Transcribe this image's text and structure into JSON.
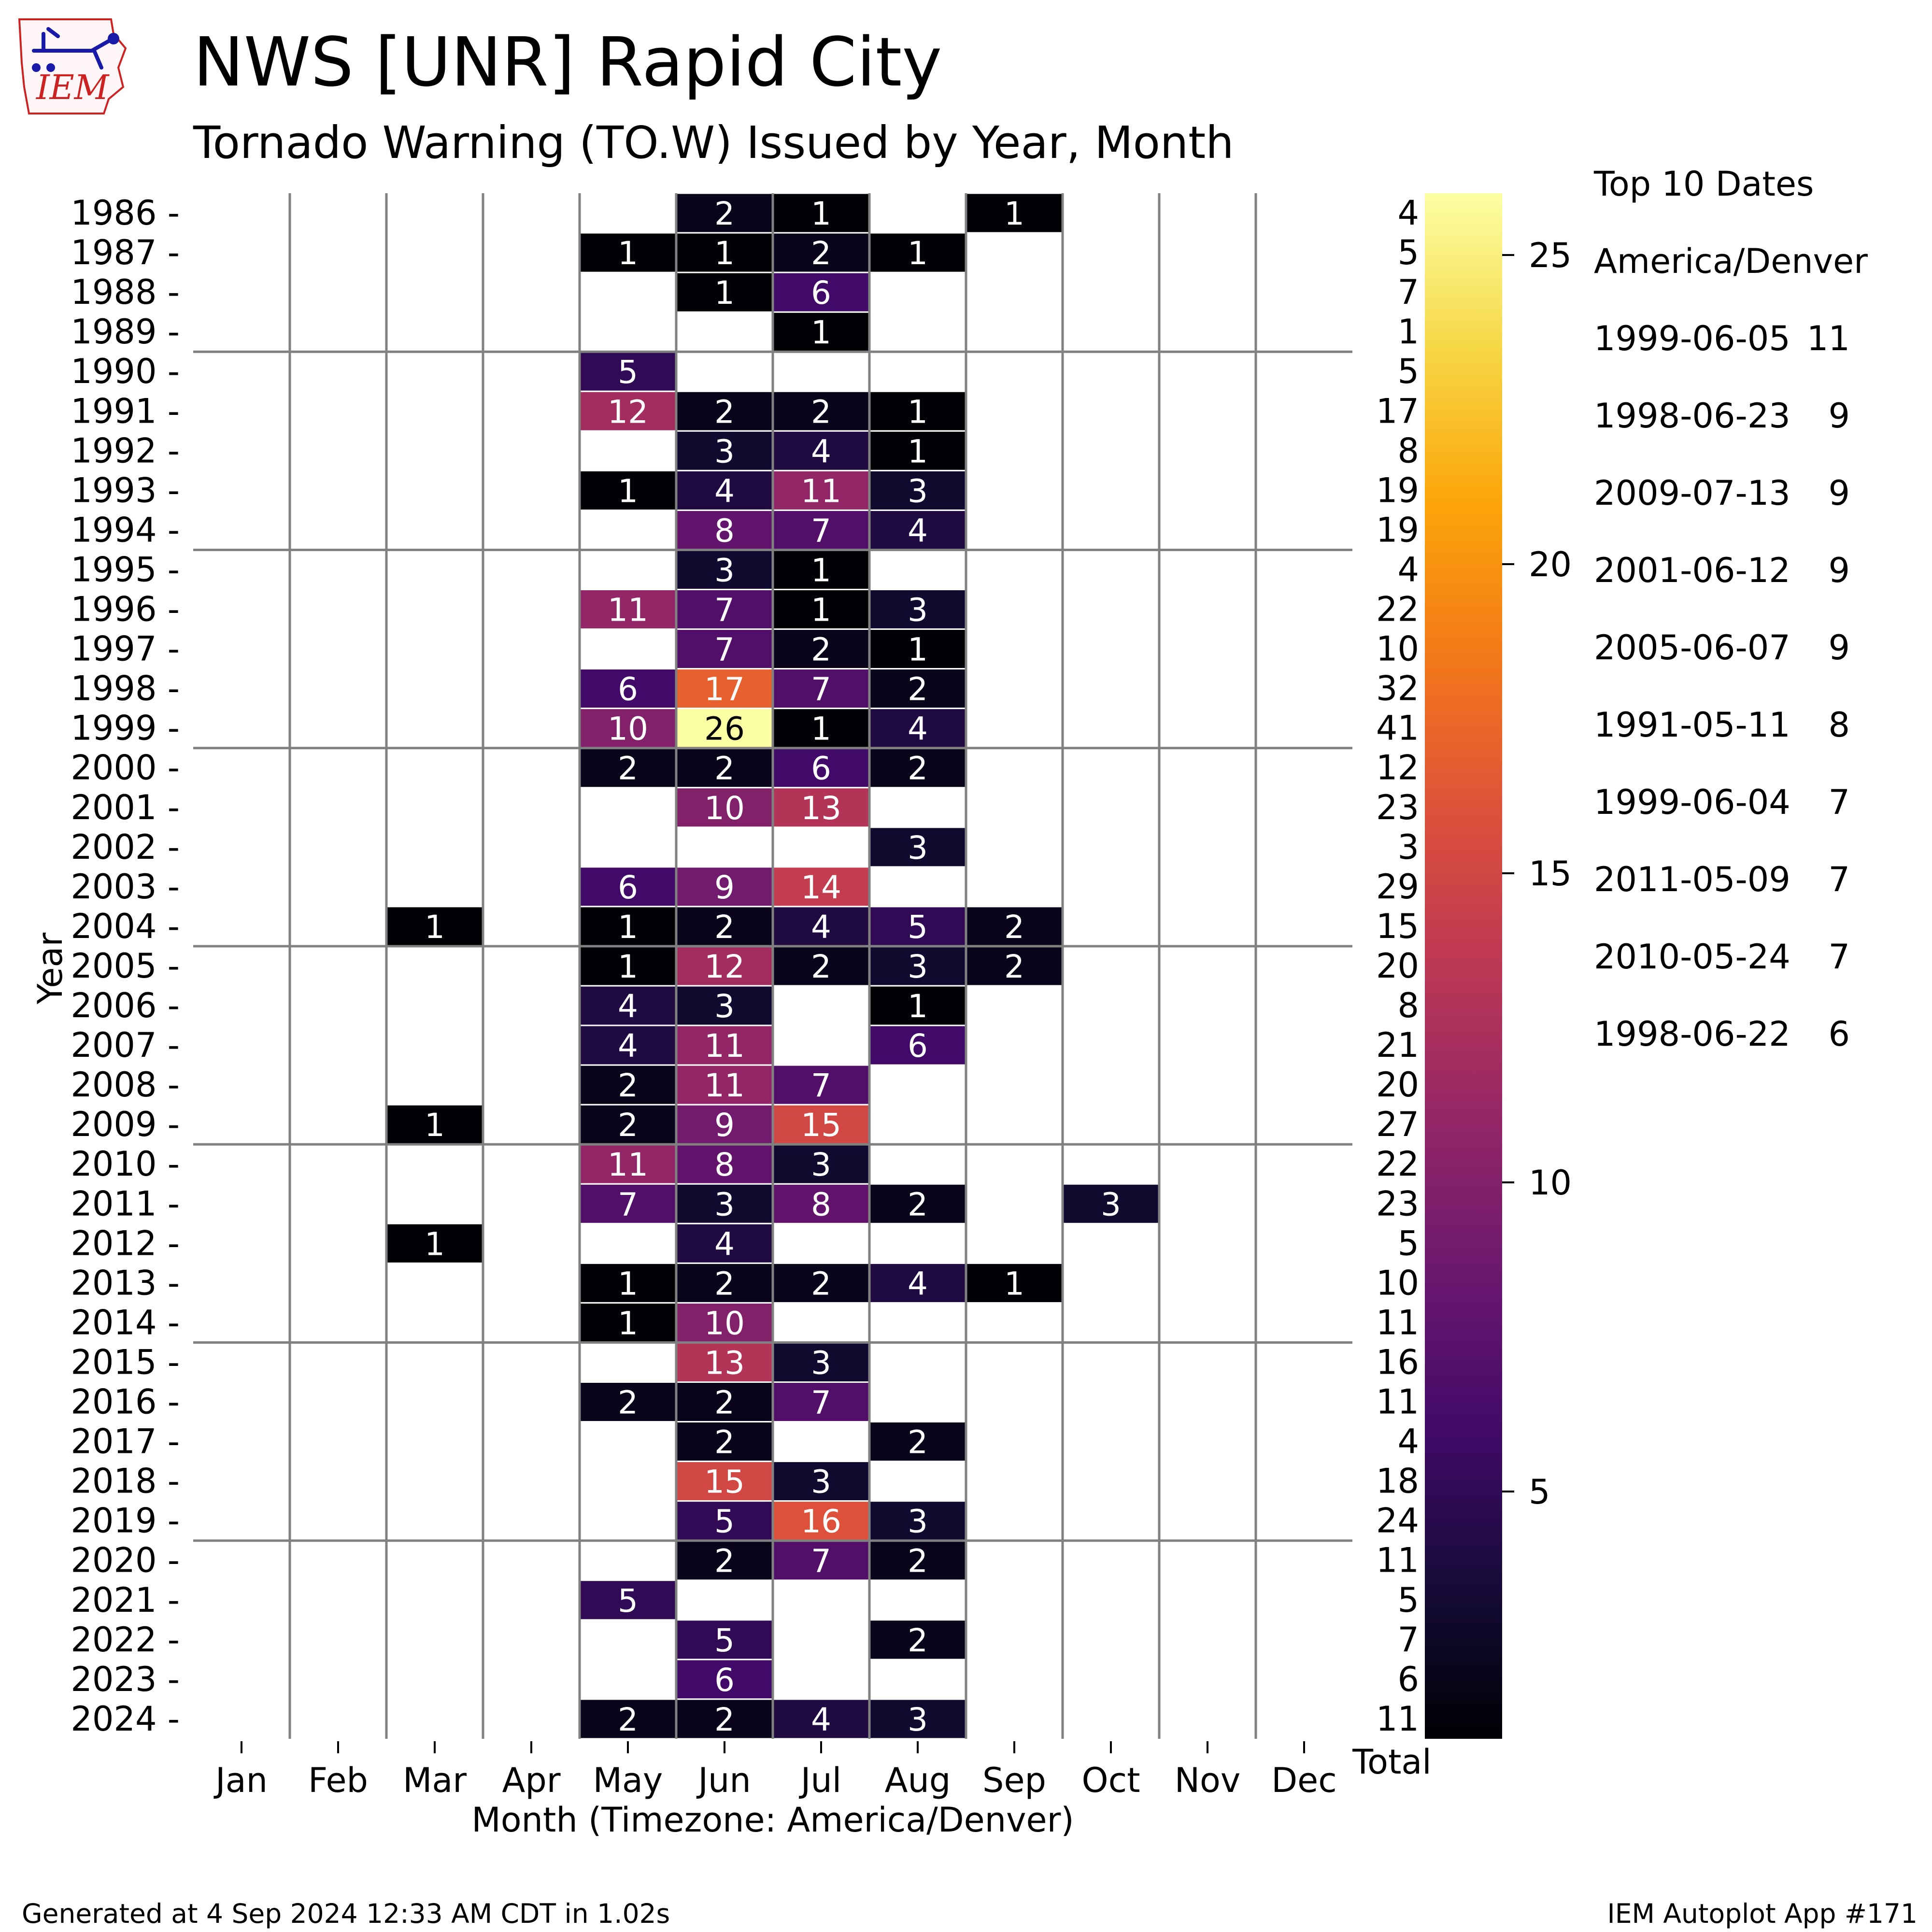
{
  "header": {
    "title": "NWS [UNR] Rapid City",
    "subtitle": "Tornado Warning (TO.W) Issued by Year, Month",
    "logo_text": "IEM"
  },
  "footer": {
    "generated": "Generated at 4 Sep 2024 12:33 AM CDT in 1.02s",
    "app": "IEM Autoplot App #171"
  },
  "top_dates": {
    "title": "Top 10 Dates",
    "timezone": "America/Denver",
    "items": [
      {
        "date": "1999-06-05",
        "count": "11"
      },
      {
        "date": "1998-06-23",
        "count": "9"
      },
      {
        "date": "2009-07-13",
        "count": "9"
      },
      {
        "date": "2001-06-12",
        "count": "9"
      },
      {
        "date": "2005-06-07",
        "count": "9"
      },
      {
        "date": "1991-05-11",
        "count": "8"
      },
      {
        "date": "1999-06-04",
        "count": "7"
      },
      {
        "date": "2011-05-09",
        "count": "7"
      },
      {
        "date": "2010-05-24",
        "count": "7"
      },
      {
        "date": "1998-06-22",
        "count": "6"
      }
    ]
  },
  "chart_data": {
    "type": "heatmap",
    "xlabel": "Month (Timezone: America/Denver)",
    "ylabel": "Year",
    "total_label": "Total",
    "colormap": "inferno",
    "color_range": [
      1,
      26
    ],
    "colorbar_ticks": [
      5,
      10,
      15,
      20,
      25
    ],
    "months": [
      "Jan",
      "Feb",
      "Mar",
      "Apr",
      "May",
      "Jun",
      "Jul",
      "Aug",
      "Sep",
      "Oct",
      "Nov",
      "Dec"
    ],
    "years": [
      1986,
      1987,
      1988,
      1989,
      1990,
      1991,
      1992,
      1993,
      1994,
      1995,
      1996,
      1997,
      1998,
      1999,
      2000,
      2001,
      2002,
      2003,
      2004,
      2005,
      2006,
      2007,
      2008,
      2009,
      2010,
      2011,
      2012,
      2013,
      2014,
      2015,
      2016,
      2017,
      2018,
      2019,
      2020,
      2021,
      2022,
      2023,
      2024
    ],
    "totals": [
      4,
      5,
      7,
      1,
      5,
      17,
      8,
      19,
      19,
      4,
      22,
      10,
      32,
      41,
      12,
      23,
      3,
      29,
      15,
      20,
      8,
      21,
      20,
      27,
      22,
      23,
      5,
      10,
      11,
      16,
      11,
      4,
      18,
      24,
      11,
      5,
      7,
      6,
      11
    ],
    "values": [
      [
        null,
        null,
        null,
        null,
        null,
        2,
        1,
        null,
        1,
        null,
        null,
        null
      ],
      [
        null,
        null,
        null,
        null,
        1,
        1,
        2,
        1,
        null,
        null,
        null,
        null
      ],
      [
        null,
        null,
        null,
        null,
        null,
        1,
        6,
        null,
        null,
        null,
        null,
        null
      ],
      [
        null,
        null,
        null,
        null,
        null,
        null,
        1,
        null,
        null,
        null,
        null,
        null
      ],
      [
        null,
        null,
        null,
        null,
        5,
        null,
        null,
        null,
        null,
        null,
        null,
        null
      ],
      [
        null,
        null,
        null,
        null,
        12,
        2,
        2,
        1,
        null,
        null,
        null,
        null
      ],
      [
        null,
        null,
        null,
        null,
        null,
        3,
        4,
        1,
        null,
        null,
        null,
        null
      ],
      [
        null,
        null,
        null,
        null,
        1,
        4,
        11,
        3,
        null,
        null,
        null,
        null
      ],
      [
        null,
        null,
        null,
        null,
        null,
        8,
        7,
        4,
        null,
        null,
        null,
        null
      ],
      [
        null,
        null,
        null,
        null,
        null,
        3,
        1,
        null,
        null,
        null,
        null,
        null
      ],
      [
        null,
        null,
        null,
        null,
        11,
        7,
        1,
        3,
        null,
        null,
        null,
        null
      ],
      [
        null,
        null,
        null,
        null,
        null,
        7,
        2,
        1,
        null,
        null,
        null,
        null
      ],
      [
        null,
        null,
        null,
        null,
        6,
        17,
        7,
        2,
        null,
        null,
        null,
        null
      ],
      [
        null,
        null,
        null,
        null,
        10,
        26,
        1,
        4,
        null,
        null,
        null,
        null
      ],
      [
        null,
        null,
        null,
        null,
        2,
        2,
        6,
        2,
        null,
        null,
        null,
        null
      ],
      [
        null,
        null,
        null,
        null,
        null,
        10,
        13,
        null,
        null,
        null,
        null,
        null
      ],
      [
        null,
        null,
        null,
        null,
        null,
        null,
        null,
        3,
        null,
        null,
        null,
        null
      ],
      [
        null,
        null,
        null,
        null,
        6,
        9,
        14,
        null,
        null,
        null,
        null,
        null
      ],
      [
        null,
        null,
        1,
        null,
        1,
        2,
        4,
        5,
        2,
        null,
        null,
        null
      ],
      [
        null,
        null,
        null,
        null,
        1,
        12,
        2,
        3,
        2,
        null,
        null,
        null
      ],
      [
        null,
        null,
        null,
        null,
        4,
        3,
        null,
        1,
        null,
        null,
        null,
        null
      ],
      [
        null,
        null,
        null,
        null,
        4,
        11,
        null,
        6,
        null,
        null,
        null,
        null
      ],
      [
        null,
        null,
        null,
        null,
        2,
        11,
        7,
        null,
        null,
        null,
        null,
        null
      ],
      [
        null,
        null,
        1,
        null,
        2,
        9,
        15,
        null,
        null,
        null,
        null,
        null
      ],
      [
        null,
        null,
        null,
        null,
        11,
        8,
        3,
        null,
        null,
        null,
        null,
        null
      ],
      [
        null,
        null,
        null,
        null,
        7,
        3,
        8,
        2,
        null,
        3,
        null,
        null
      ],
      [
        null,
        null,
        1,
        null,
        null,
        4,
        null,
        null,
        null,
        null,
        null,
        null
      ],
      [
        null,
        null,
        null,
        null,
        1,
        2,
        2,
        4,
        1,
        null,
        null,
        null
      ],
      [
        null,
        null,
        null,
        null,
        1,
        10,
        null,
        null,
        null,
        null,
        null,
        null
      ],
      [
        null,
        null,
        null,
        null,
        null,
        13,
        3,
        null,
        null,
        null,
        null,
        null
      ],
      [
        null,
        null,
        null,
        null,
        2,
        2,
        7,
        null,
        null,
        null,
        null,
        null
      ],
      [
        null,
        null,
        null,
        null,
        null,
        2,
        null,
        2,
        null,
        null,
        null,
        null
      ],
      [
        null,
        null,
        null,
        null,
        null,
        15,
        3,
        null,
        null,
        null,
        null,
        null
      ],
      [
        null,
        null,
        null,
        null,
        null,
        5,
        16,
        3,
        null,
        null,
        null,
        null
      ],
      [
        null,
        null,
        null,
        null,
        null,
        2,
        7,
        2,
        null,
        null,
        null,
        null
      ],
      [
        null,
        null,
        null,
        null,
        5,
        null,
        null,
        null,
        null,
        null,
        null,
        null
      ],
      [
        null,
        null,
        null,
        null,
        null,
        5,
        null,
        2,
        null,
        null,
        null,
        null
      ],
      [
        null,
        null,
        null,
        null,
        null,
        6,
        null,
        null,
        null,
        null,
        null,
        null
      ],
      [
        null,
        null,
        null,
        null,
        2,
        2,
        4,
        3,
        null,
        null,
        null,
        null
      ]
    ]
  }
}
